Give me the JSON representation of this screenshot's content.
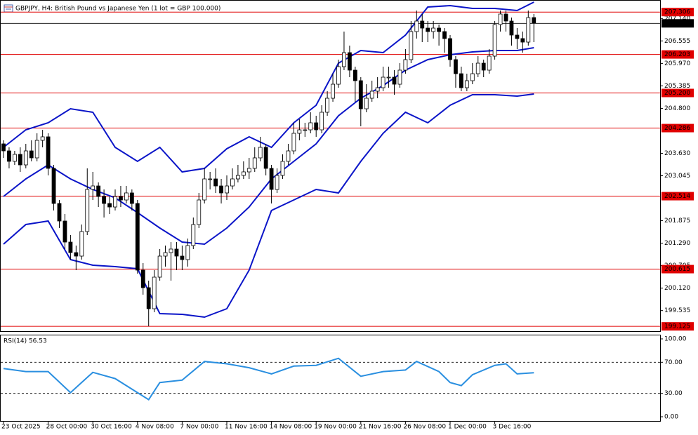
{
  "chart_data": [
    {
      "type": "candlestick",
      "title": "GBPJPY, H4:  British Pound vs Japanese Yen (1 lot = GBP 100.000)",
      "categories": [
        "23 Oct 2025",
        null,
        null,
        null,
        null,
        null,
        null,
        null,
        "28 Oct 00:00",
        null,
        null,
        null,
        null,
        null,
        null,
        null,
        "30 Oct 16:00",
        null,
        null,
        null,
        null,
        null,
        null,
        null,
        "4 Nov 08:00",
        null,
        null,
        null,
        null,
        null,
        null,
        null,
        "7 Nov 00:00",
        null,
        null,
        null,
        null,
        null,
        null,
        null,
        "11 Nov 16:00",
        null,
        null,
        null,
        null,
        null,
        null,
        null,
        "14 Nov 08:00",
        null,
        null,
        null,
        null,
        null,
        null,
        null,
        "19 Nov 00:00",
        null,
        null,
        null,
        null,
        null,
        null,
        null,
        "21 Nov 16:00",
        null,
        null,
        null,
        null,
        null,
        null,
        null,
        "26 Nov 08:00",
        null,
        null,
        null,
        null,
        null,
        null,
        null,
        "1 Dec 00:00",
        null,
        null,
        null,
        null,
        null,
        null,
        null,
        "3 Dec 16:00",
        null,
        null,
        null,
        null,
        null,
        null,
        null
      ],
      "ohlc": [
        [
          203.876,
          203.967,
          203.511,
          203.693
        ],
        [
          203.693,
          203.785,
          203.237,
          203.42
        ],
        [
          203.42,
          203.693,
          203.328,
          203.602
        ],
        [
          203.602,
          203.785,
          203.146,
          203.328
        ],
        [
          203.328,
          203.876,
          203.237,
          203.693
        ],
        [
          203.693,
          203.967,
          203.42,
          203.511
        ],
        [
          203.511,
          204.15,
          203.42,
          203.967
        ],
        [
          203.967,
          204.241,
          203.785,
          204.059
        ],
        [
          204.059,
          204.15,
          203.054,
          203.237
        ],
        [
          203.237,
          203.328,
          202.141,
          202.324
        ],
        [
          202.324,
          202.415,
          201.685,
          201.867
        ],
        [
          201.867,
          202.05,
          201.137,
          201.319
        ],
        [
          201.319,
          201.502,
          200.863,
          201.045
        ],
        [
          201.045,
          201.228,
          200.589,
          200.954
        ],
        [
          200.954,
          201.776,
          200.863,
          201.593
        ],
        [
          201.593,
          203.237,
          201.502,
          202.689
        ],
        [
          202.689,
          203.146,
          202.415,
          202.78
        ],
        [
          202.78,
          202.872,
          202.232,
          202.506
        ],
        [
          202.506,
          202.689,
          201.958,
          202.324
        ],
        [
          202.324,
          202.506,
          202.05,
          202.232
        ],
        [
          202.232,
          202.689,
          202.141,
          202.506
        ],
        [
          202.506,
          202.78,
          202.232,
          202.415
        ],
        [
          202.415,
          202.78,
          202.324,
          202.598
        ],
        [
          202.598,
          202.689,
          202.141,
          202.324
        ],
        [
          202.324,
          202.415,
          200.497,
          200.589
        ],
        [
          200.589,
          200.771,
          199.95,
          200.132
        ],
        [
          200.132,
          200.315,
          199.128,
          199.584
        ],
        [
          199.584,
          200.589,
          199.493,
          200.406
        ],
        [
          200.406,
          201.137,
          200.315,
          200.954
        ],
        [
          200.954,
          201.228,
          200.68,
          201.045
        ],
        [
          201.045,
          201.319,
          200.315,
          201.137
        ],
        [
          201.137,
          201.319,
          200.589,
          200.954
        ],
        [
          200.954,
          201.228,
          200.589,
          200.863
        ],
        [
          200.863,
          201.411,
          200.68,
          201.228
        ],
        [
          201.228,
          201.958,
          201.137,
          201.776
        ],
        [
          201.776,
          202.598,
          201.685,
          202.415
        ],
        [
          202.415,
          203.237,
          202.324,
          202.963
        ],
        [
          202.963,
          203.146,
          202.689,
          202.963
        ],
        [
          202.963,
          203.237,
          202.598,
          202.78
        ],
        [
          202.78,
          202.963,
          202.324,
          202.598
        ],
        [
          202.598,
          203.054,
          202.415,
          202.78
        ],
        [
          202.78,
          203.237,
          202.689,
          202.963
        ],
        [
          202.963,
          203.328,
          202.872,
          203.054
        ],
        [
          203.054,
          203.42,
          202.963,
          203.146
        ],
        [
          203.146,
          203.511,
          202.963,
          203.237
        ],
        [
          203.237,
          203.785,
          203.146,
          203.511
        ],
        [
          203.511,
          204.059,
          203.42,
          203.785
        ],
        [
          203.785,
          203.876,
          203.054,
          203.237
        ],
        [
          203.237,
          203.328,
          202.324,
          202.689
        ],
        [
          202.689,
          203.237,
          202.598,
          203.054
        ],
        [
          203.054,
          203.602,
          202.963,
          203.42
        ],
        [
          203.42,
          203.876,
          203.328,
          203.693
        ],
        [
          203.693,
          204.424,
          203.602,
          204.15
        ],
        [
          204.15,
          204.515,
          203.967,
          204.241
        ],
        [
          204.241,
          204.424,
          204.059,
          204.241
        ],
        [
          204.241,
          204.698,
          204.15,
          204.424
        ],
        [
          204.424,
          204.607,
          204.059,
          204.241
        ],
        [
          204.241,
          204.881,
          204.15,
          204.698
        ],
        [
          204.698,
          205.246,
          204.607,
          205.063
        ],
        [
          205.063,
          205.702,
          204.972,
          205.428
        ],
        [
          205.428,
          206.068,
          205.337,
          205.885
        ],
        [
          205.885,
          206.798,
          205.794,
          206.25
        ],
        [
          206.25,
          206.433,
          205.611,
          205.794
        ],
        [
          205.794,
          205.885,
          204.972,
          205.52
        ],
        [
          205.52,
          205.611,
          204.333,
          204.789
        ],
        [
          204.789,
          205.428,
          204.698,
          205.063
        ],
        [
          205.063,
          205.52,
          204.972,
          205.246
        ],
        [
          205.246,
          205.611,
          205.063,
          205.337
        ],
        [
          205.337,
          205.885,
          205.246,
          205.611
        ],
        [
          205.611,
          205.885,
          205.337,
          205.611
        ],
        [
          205.611,
          205.794,
          205.154,
          205.428
        ],
        [
          205.428,
          205.976,
          205.337,
          205.794
        ],
        [
          205.794,
          206.342,
          205.702,
          206.068
        ],
        [
          206.068,
          207.072,
          205.976,
          206.798
        ],
        [
          206.798,
          207.346,
          206.616,
          207.072
        ],
        [
          207.072,
          207.255,
          206.524,
          206.889
        ],
        [
          206.889,
          207.072,
          206.524,
          206.798
        ],
        [
          206.798,
          207.072,
          206.616,
          206.889
        ],
        [
          206.889,
          206.981,
          206.433,
          206.798
        ],
        [
          206.798,
          206.889,
          206.25,
          206.616
        ],
        [
          206.616,
          206.707,
          205.885,
          206.068
        ],
        [
          206.068,
          206.159,
          205.337,
          205.702
        ],
        [
          205.702,
          205.885,
          205.246,
          205.337
        ],
        [
          205.337,
          205.702,
          205.246,
          205.52
        ],
        [
          205.52,
          205.976,
          205.428,
          205.702
        ],
        [
          205.702,
          206.159,
          205.611,
          205.976
        ],
        [
          205.976,
          206.068,
          205.611,
          205.794
        ],
        [
          205.794,
          206.342,
          205.702,
          206.159
        ],
        [
          206.159,
          207.072,
          206.068,
          206.981
        ],
        [
          206.981,
          207.346,
          206.798,
          207.255
        ],
        [
          207.255,
          207.346,
          206.798,
          207.072
        ],
        [
          207.072,
          207.163,
          206.433,
          206.707
        ],
        [
          206.707,
          206.889,
          206.342,
          206.616
        ],
        [
          206.616,
          206.798,
          206.25,
          206.524
        ],
        [
          206.524,
          207.346,
          206.433,
          207.163
        ],
        [
          207.163,
          207.255,
          206.524,
          207.017
        ]
      ],
      "candle_color": "#000000",
      "lines": [
        {
          "color": "#0a14c8",
          "x": [
            0,
            4,
            8,
            12,
            16,
            20,
            24,
            28,
            32,
            36,
            40,
            44,
            48,
            52,
            56,
            60,
            64,
            68,
            72,
            76,
            80,
            84,
            88,
            92,
            95
          ],
          "values": [
            203.785,
            204.241,
            204.424,
            204.789,
            204.698,
            203.785,
            203.42,
            203.785,
            203.146,
            203.237,
            203.748,
            204.059,
            203.785,
            204.424,
            204.881,
            205.976,
            206.305,
            206.25,
            206.707,
            207.437,
            207.474,
            207.401,
            207.401,
            207.346,
            207.565
          ]
        },
        {
          "color": "#0a14c8",
          "x": [
            0,
            4,
            8,
            12,
            16,
            20,
            24,
            28,
            32,
            36,
            40,
            44,
            48,
            52,
            56,
            60,
            64,
            68,
            72,
            76,
            80,
            84,
            88,
            92,
            95
          ],
          "values": [
            202.506,
            202.963,
            203.328,
            202.963,
            202.689,
            202.47,
            202.086,
            201.685,
            201.319,
            201.264,
            201.685,
            202.232,
            202.963,
            203.42,
            203.876,
            204.607,
            205.063,
            205.392,
            205.794,
            206.068,
            206.196,
            206.269,
            206.305,
            206.305,
            206.378
          ]
        },
        {
          "color": "#0a14c8",
          "x": [
            0,
            4,
            8,
            12,
            16,
            20,
            24,
            28,
            32,
            36,
            40,
            44,
            48,
            52,
            56,
            60,
            64,
            68,
            72,
            76,
            80,
            84,
            88,
            92,
            95
          ],
          "values": [
            201.264,
            201.776,
            201.867,
            200.863,
            200.717,
            200.68,
            200.625,
            199.456,
            199.438,
            199.365,
            199.584,
            200.589,
            202.141,
            202.415,
            202.689,
            202.598,
            203.42,
            204.15,
            204.698,
            204.424,
            204.881,
            205.154,
            205.154,
            205.118,
            205.173
          ]
        }
      ],
      "levels": [
        207.306,
        206.203,
        {
          "value": 205.2,
          "label": "205.200"
        },
        204.286,
        202.514,
        200.615,
        199.125
      ],
      "level_color": "#e00000",
      "current_price": 207.012,
      "ylim": [
        199.0,
        207.62
      ],
      "yticks": [
        {
          "value": 207.14,
          "label": "207.140"
        },
        206.555,
        {
          "value": 205.97,
          "label": "205.970"
        },
        205.385,
        {
          "value": 204.8,
          "label": "204.800"
        },
        {
          "value": 203.63,
          "label": "203.630"
        },
        203.045,
        201.875,
        {
          "value": 201.29,
          "label": "201.290"
        },
        200.705,
        {
          "value": 200.12,
          "label": "200.120"
        },
        199.535
      ]
    },
    {
      "type": "line",
      "title": "RSI(14) 56.53",
      "x": [
        0,
        4,
        8,
        12,
        16,
        20,
        24,
        26,
        28,
        32,
        36,
        40,
        44,
        48,
        52,
        56,
        60,
        64,
        68,
        72,
        74,
        78,
        80,
        82,
        84,
        88,
        90,
        92,
        95
      ],
      "values": [
        62,
        58,
        58,
        31,
        57,
        49,
        31,
        22,
        44,
        47,
        71,
        68,
        63,
        55,
        65,
        66,
        75,
        52,
        58,
        60,
        71,
        58,
        44,
        40,
        54,
        66,
        68,
        55,
        56.53
      ],
      "color": "#2a8fe0",
      "dashed_levels": [
        70,
        30
      ],
      "ylim": [
        -5.4,
        104.5
      ],
      "yticks": [
        {
          "value": 100,
          "label": "100.00"
        },
        {
          "value": 70,
          "label": "70.00"
        },
        {
          "value": 30,
          "label": "30.00"
        },
        {
          "value": 0,
          "label": "0.00"
        }
      ]
    }
  ]
}
